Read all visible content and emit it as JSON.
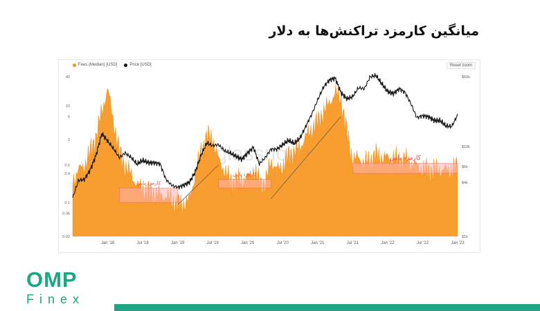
{
  "title": "میانگین کارمزد تراکنش‌ها به دلار",
  "legend": [
    {
      "label": "Fees (Median) [USD]",
      "color": "#f7931a"
    },
    {
      "label": "Price [USD]",
      "color": "#111111"
    }
  ],
  "reset_label": "Reset zoom",
  "watermark": "glassnode",
  "annotations": [
    "کارمزد پایین",
    "کارمزد پایین",
    "کارمزد پایین",
    "کارمزد پایین"
  ],
  "logo": {
    "main": "OMP",
    "sub": "Finex"
  },
  "colors": {
    "fees": "#f7931a",
    "price": "#111111",
    "low_band": "#ff6b6b",
    "brand": "#1ea583"
  },
  "chart_data": {
    "type": "area",
    "title": "",
    "xlabel": "",
    "ylabel": "",
    "x_ticks": [
      "Jan '18",
      "Jul '18",
      "Jan '19",
      "Jul '19",
      "Jan '20",
      "Jul '20",
      "Jan '21",
      "Jul '21",
      "Jan '22",
      "Jul '22",
      "Jan '23"
    ],
    "y_left_ticks": [
      "0.02",
      "0.06",
      "0.1",
      "0.4",
      "0.6",
      "2",
      "6",
      "10",
      "40"
    ],
    "y_right_ticks": [
      "$1k",
      "$4k",
      "$6k",
      "$10k",
      "$60k"
    ],
    "y_left_scale": "log",
    "y_left_range": [
      0.02,
      40
    ],
    "y_right_scale": "log",
    "y_right_range": [
      1000,
      60000
    ],
    "x": [
      "2017-07",
      "2017-08",
      "2017-09",
      "2017-10",
      "2017-11",
      "2017-12",
      "2018-01",
      "2018-02",
      "2018-03",
      "2018-04",
      "2018-05",
      "2018-06",
      "2018-07",
      "2018-08",
      "2018-09",
      "2018-10",
      "2018-11",
      "2018-12",
      "2019-01",
      "2019-02",
      "2019-03",
      "2019-04",
      "2019-05",
      "2019-06",
      "2019-07",
      "2019-08",
      "2019-09",
      "2019-10",
      "2019-11",
      "2019-12",
      "2020-01",
      "2020-02",
      "2020-03",
      "2020-04",
      "2020-05",
      "2020-06",
      "2020-07",
      "2020-08",
      "2020-09",
      "2020-10",
      "2020-11",
      "2020-12",
      "2021-01",
      "2021-02",
      "2021-03",
      "2021-04",
      "2021-05",
      "2021-06",
      "2021-07",
      "2021-08",
      "2021-09",
      "2021-10",
      "2021-11",
      "2021-12",
      "2022-01",
      "2022-02",
      "2022-03",
      "2022-04",
      "2022-05",
      "2022-06",
      "2022-07",
      "2022-08",
      "2022-09",
      "2022-10",
      "2022-11",
      "2022-12",
      "2023-01"
    ],
    "series": [
      {
        "name": "Fees (Median) [USD]",
        "axis": "left",
        "values": [
          0.3,
          0.5,
          0.6,
          1.2,
          2.5,
          8,
          24,
          5,
          1.2,
          0.6,
          0.4,
          0.25,
          0.2,
          0.18,
          0.16,
          0.15,
          0.14,
          0.12,
          0.1,
          0.1,
          0.12,
          0.4,
          1.2,
          2.5,
          2.2,
          0.8,
          0.5,
          0.3,
          0.3,
          0.3,
          0.35,
          0.5,
          0.3,
          0.25,
          0.8,
          0.5,
          0.6,
          1.0,
          1.2,
          1.5,
          2.5,
          3.5,
          5,
          8,
          12,
          20,
          15,
          3,
          0.8,
          0.9,
          0.7,
          0.8,
          1.0,
          0.9,
          0.9,
          0.9,
          0.8,
          0.8,
          0.7,
          0.6,
          0.5,
          0.5,
          0.5,
          0.5,
          0.5,
          0.5,
          0.6
        ]
      },
      {
        "name": "Price [USD]",
        "axis": "right",
        "values": [
          2700,
          4200,
          4300,
          5500,
          8000,
          14000,
          11500,
          9500,
          7500,
          8500,
          7600,
          6400,
          7000,
          6600,
          6600,
          6400,
          4300,
          3700,
          3500,
          3700,
          4000,
          5200,
          8000,
          11000,
          10200,
          10500,
          9000,
          8500,
          7800,
          7200,
          8500,
          9800,
          6400,
          7500,
          9400,
          9300,
          10500,
          11700,
          10800,
          12500,
          17000,
          23000,
          33000,
          46000,
          55000,
          58000,
          40000,
          34000,
          36000,
          45000,
          44000,
          60000,
          62000,
          50000,
          41000,
          39000,
          44000,
          40000,
          30000,
          21000,
          22000,
          21500,
          19500,
          19500,
          17000,
          16800,
          22500
        ]
      }
    ],
    "low_fee_zones": [
      {
        "label": "کارمزد پایین",
        "start": "2018-03",
        "end": "2019-01",
        "fee_range": [
          0.1,
          0.2
        ]
      },
      {
        "label": "کارمزد پایین",
        "start": "2019-08",
        "end": "2020-05",
        "fee_range": [
          0.2,
          0.3
        ]
      },
      {
        "label": "کارمزد پایین",
        "start": "2021-07",
        "end": "2023-01",
        "fee_range": [
          0.4,
          0.65
        ]
      }
    ],
    "grid": false,
    "legend_position": "top-left"
  }
}
